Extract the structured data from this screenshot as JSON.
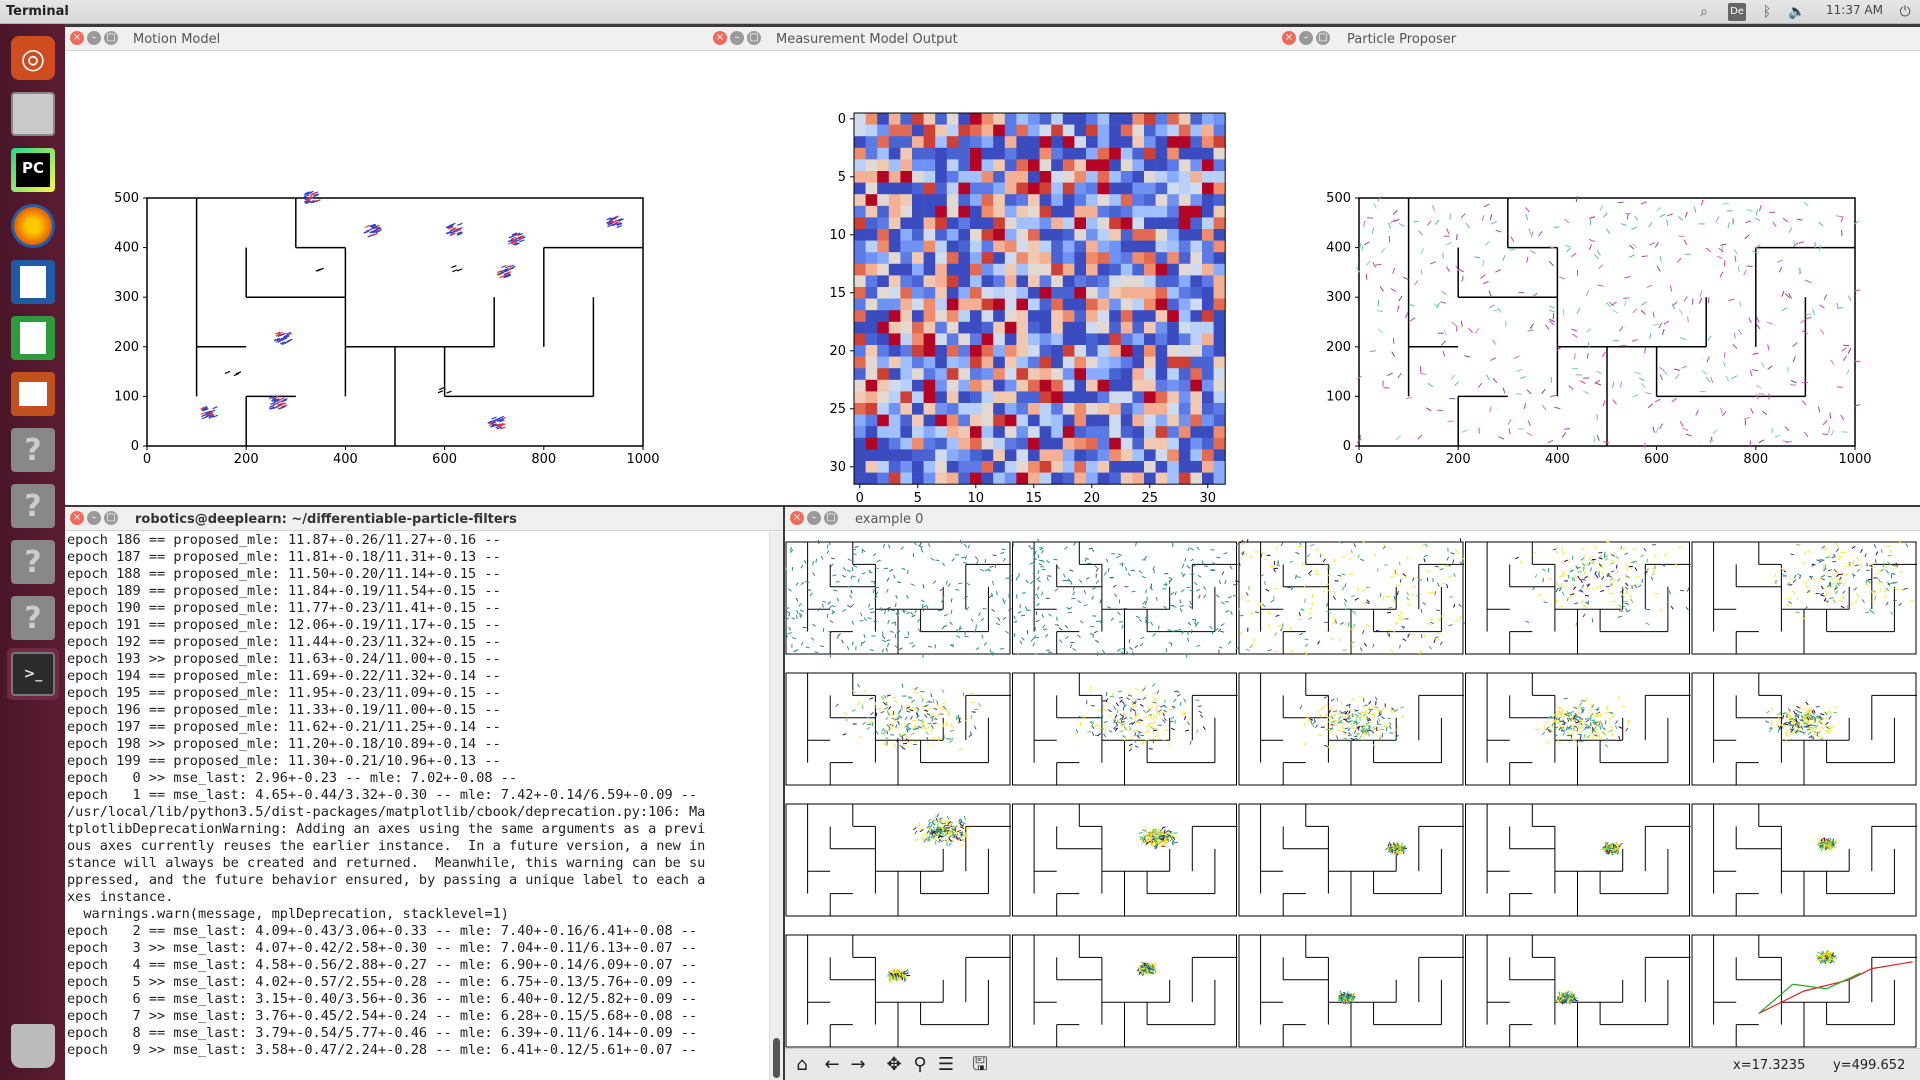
{
  "topbar": {
    "app_title": "Terminal",
    "time": "11:37 AM",
    "keyboard": "De"
  },
  "windows": {
    "motion": {
      "title": "Motion Model"
    },
    "measurement": {
      "title": "Measurement Model Output"
    },
    "proposer": {
      "title": "Particle Proposer"
    },
    "terminal": {
      "title": "robotics@deeplearn: ~/differentiable-particle-filters"
    },
    "example": {
      "title": "example 0",
      "coord_x": "x=17.3235",
      "coord_y": "y=499.652"
    }
  },
  "maze_axes": {
    "xticks": [
      "0",
      "200",
      "400",
      "600",
      "800",
      "1000"
    ],
    "yticks": [
      "0",
      "100",
      "200",
      "300",
      "400",
      "500"
    ]
  },
  "matrix_axes": {
    "xticks": [
      "0",
      "5",
      "10",
      "15",
      "20",
      "25",
      "30"
    ],
    "yticks": [
      "0",
      "5",
      "10",
      "15",
      "20",
      "25",
      "30"
    ]
  },
  "terminal_lines": [
    "epoch 186 == proposed_mle: 11.87+-0.26/11.27+-0.16 --",
    "epoch 187 == proposed_mle: 11.81+-0.18/11.31+-0.13 --",
    "epoch 188 == proposed_mle: 11.50+-0.20/11.14+-0.15 --",
    "epoch 189 == proposed_mle: 11.84+-0.19/11.54+-0.15 --",
    "epoch 190 == proposed_mle: 11.77+-0.23/11.41+-0.15 --",
    "epoch 191 == proposed_mle: 12.06+-0.19/11.17+-0.15 --",
    "epoch 192 == proposed_mle: 11.44+-0.23/11.32+-0.15 --",
    "epoch 193 >> proposed_mle: 11.63+-0.24/11.00+-0.15 --",
    "epoch 194 == proposed_mle: 11.69+-0.22/11.32+-0.14 --",
    "epoch 195 == proposed_mle: 11.95+-0.23/11.09+-0.15 --",
    "epoch 196 == proposed_mle: 11.33+-0.19/11.00+-0.15 --",
    "epoch 197 == proposed_mle: 11.62+-0.21/11.25+-0.14 --",
    "epoch 198 >> proposed_mle: 11.20+-0.18/10.89+-0.14 --",
    "epoch 199 == proposed_mle: 11.30+-0.21/10.96+-0.13 --",
    "epoch   0 >> mse_last: 2.96+-0.23 -- mle: 7.02+-0.08 --",
    "epoch   1 == mse_last: 4.65+-0.44/3.32+-0.30 -- mle: 7.42+-0.14/6.59+-0.09 --",
    "/usr/local/lib/python3.5/dist-packages/matplotlib/cbook/deprecation.py:106: Ma",
    "tplotlibDeprecationWarning: Adding an axes using the same arguments as a previ",
    "ous axes currently reuses the earlier instance.  In a future version, a new in",
    "stance will always be created and returned.  Meanwhile, this warning can be su",
    "ppressed, and the future behavior ensured, by passing a unique label to each a",
    "xes instance.",
    "  warnings.warn(message, mplDeprecation, stacklevel=1)",
    "epoch   2 == mse_last: 4.09+-0.43/3.06+-0.33 -- mle: 7.40+-0.16/6.41+-0.08 --",
    "epoch   3 >> mse_last: 4.07+-0.42/2.58+-0.30 -- mle: 7.04+-0.11/6.13+-0.07 --",
    "epoch   4 == mse_last: 4.58+-0.56/2.88+-0.27 -- mle: 6.90+-0.14/6.09+-0.07 --",
    "epoch   5 >> mse_last: 4.02+-0.57/2.55+-0.28 -- mle: 6.75+-0.13/5.76+-0.09 --",
    "epoch   6 == mse_last: 3.15+-0.40/3.56+-0.36 -- mle: 6.40+-0.12/5.82+-0.09 --",
    "epoch   7 >> mse_last: 3.76+-0.45/2.54+-0.24 -- mle: 6.28+-0.15/5.68+-0.08 --",
    "epoch   8 == mse_last: 3.79+-0.54/5.77+-0.46 -- mle: 6.39+-0.11/6.14+-0.09 --",
    "epoch   9 >> mse_last: 3.58+-0.47/2.24+-0.28 -- mle: 6.41+-0.12/5.61+-0.07 --"
  ],
  "icons": {
    "launcher": [
      "ubuntu-icon",
      "files-icon",
      "pycharm-icon",
      "firefox-icon",
      "writer-icon",
      "calc-icon",
      "impress-icon",
      "unknown-app-icon",
      "unknown-app-icon",
      "unknown-app-icon",
      "unknown-app-icon",
      "terminal-icon",
      "trash-icon"
    ]
  }
}
